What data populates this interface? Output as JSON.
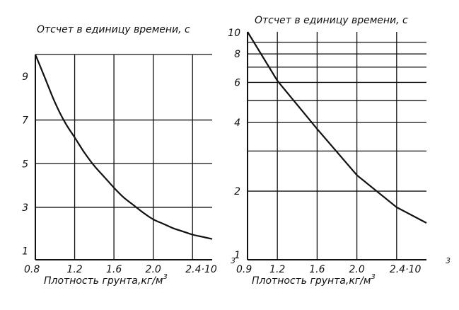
{
  "chart_data": [
    {
      "type": "line",
      "title": "Отсчет в единицу времени, с",
      "xlabel": "Плотность грунта,кг/м",
      "xlabel_sup": "3",
      "x_tick_labels": [
        "0.8",
        "1.2",
        "1.6",
        "2.0",
        "2.4·10"
      ],
      "x_tick_values": [
        0.8,
        1.2,
        1.6,
        2.0,
        2.4
      ],
      "x_exponent": "3",
      "y_tick_labels": [
        "1",
        "3",
        "5",
        "7",
        "9"
      ],
      "y_tick_values": [
        1,
        3,
        5,
        7,
        9
      ],
      "xlim": [
        0.8,
        2.6
      ],
      "ylim": [
        0.6,
        10
      ],
      "y_scale": "linear",
      "x_grid": [
        1.2,
        1.6,
        2.0,
        2.4
      ],
      "y_grid": [
        3,
        5,
        7,
        10
      ],
      "grid": true,
      "series": [
        {
          "x": [
            0.8,
            0.9,
            1.0,
            1.1,
            1.2,
            1.3,
            1.4,
            1.5,
            1.6,
            1.7,
            1.8,
            1.9,
            2.0,
            2.1,
            2.2,
            2.3,
            2.4,
            2.5,
            2.6
          ],
          "values": [
            10.0,
            8.9,
            7.8,
            6.9,
            6.2,
            5.5,
            4.9,
            4.4,
            3.9,
            3.45,
            3.1,
            2.75,
            2.45,
            2.25,
            2.05,
            1.9,
            1.75,
            1.65,
            1.55
          ]
        }
      ]
    },
    {
      "type": "line",
      "title": "Отсчет в единицу времени, с",
      "xlabel": "Плотность грунта,кг/м",
      "xlabel_sup": "3",
      "x_tick_labels": [
        "0.9",
        "1.2",
        "1.6",
        "2.0",
        "2.4·10"
      ],
      "x_tick_values": [
        0.9,
        1.2,
        1.6,
        2.0,
        2.4
      ],
      "x_exponent": "3",
      "y_tick_labels": [
        "1",
        "2",
        "4",
        "6",
        "8",
        "10"
      ],
      "y_tick_values": [
        1,
        2,
        4,
        6,
        8,
        10
      ],
      "xlim": [
        0.9,
        2.7
      ],
      "ylim": [
        1,
        10
      ],
      "y_scale": "log",
      "x_grid": [
        1.2,
        1.6,
        2.0,
        2.4
      ],
      "y_grid": [
        2,
        3,
        4,
        5,
        6,
        7,
        8,
        9
      ],
      "grid": true,
      "series": [
        {
          "x": [
            0.9,
            1.2,
            1.6,
            2.0,
            2.4,
            2.7
          ],
          "values": [
            10.0,
            6.1,
            3.75,
            2.35,
            1.7,
            1.45
          ]
        }
      ]
    }
  ]
}
